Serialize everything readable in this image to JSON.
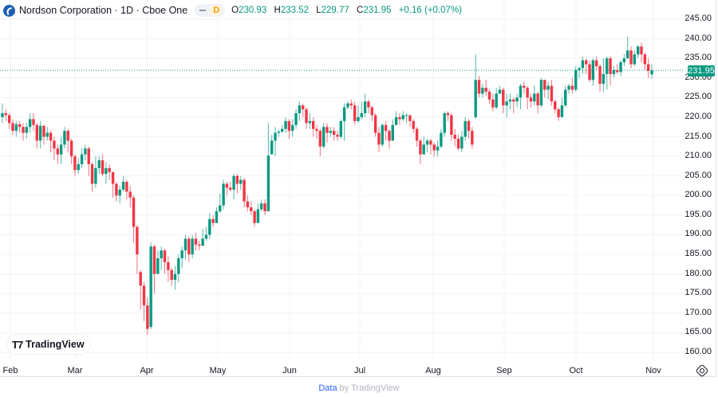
{
  "header": {
    "title": "Nordson Corporation · 1D · Cboe One",
    "badge": "D",
    "ohlc": [
      {
        "key": "O",
        "value": "230.93"
      },
      {
        "key": "H",
        "value": "233.52"
      },
      {
        "key": "L",
        "value": "229.77"
      },
      {
        "key": "C",
        "value": "231.95"
      },
      {
        "key": "",
        "value": "+0.16 (+0.07%)"
      }
    ]
  },
  "price_tag": "231.95",
  "branding": "TradingView",
  "footer": {
    "link": "Data",
    "text": " by TradingView"
  },
  "colors": {
    "up": "#089981",
    "down": "#f23645",
    "grid": "#f0f3fa",
    "price_line": "#089981"
  },
  "chart_data": {
    "type": "candlestick",
    "title": "Nordson Corporation · 1D · Cboe One",
    "y_ticks": [
      "245.00",
      "240.00",
      "235.00",
      "230.00",
      "225.00",
      "220.00",
      "215.00",
      "210.00",
      "205.00",
      "200.00",
      "195.00",
      "190.00",
      "185.00",
      "180.00",
      "175.00",
      "170.00",
      "165.00",
      "160.00"
    ],
    "x_ticks": [
      "Feb",
      "Mar",
      "Apr",
      "May",
      "Jun",
      "Jul",
      "Aug",
      "Sep",
      "Oct",
      "Nov"
    ],
    "ylim": [
      158,
      247
    ],
    "last_price": 231.95,
    "candles": [
      [
        220.0,
        221.0,
        223.5,
        218.5
      ],
      [
        221.0,
        220.5,
        222,
        219
      ],
      [
        220.5,
        218.5,
        221,
        217
      ],
      [
        218.5,
        216.5,
        219.5,
        215.5
      ],
      [
        216.5,
        218.2,
        219,
        215
      ],
      [
        218.2,
        217.5,
        219,
        216
      ],
      [
        217.5,
        216,
        218.5,
        214
      ],
      [
        216,
        217.5,
        218.5,
        214.5
      ],
      [
        217.5,
        219.5,
        221,
        216
      ],
      [
        219.5,
        218,
        221,
        216.5
      ],
      [
        218,
        214,
        218.5,
        212
      ],
      [
        214,
        217.8,
        219,
        212
      ],
      [
        217.8,
        215,
        218,
        213
      ],
      [
        215,
        216,
        217.5,
        214
      ],
      [
        216,
        214,
        216.5,
        211
      ],
      [
        214,
        212,
        215,
        209
      ],
      [
        212,
        210.5,
        213,
        208
      ],
      [
        210.5,
        213,
        215,
        208
      ],
      [
        213,
        216.5,
        217.5,
        212
      ],
      [
        216.5,
        214,
        217,
        211
      ],
      [
        214,
        210,
        214.5,
        208
      ],
      [
        210,
        206.5,
        210.5,
        205
      ],
      [
        206.5,
        208,
        209.5,
        205.5
      ],
      [
        208,
        210.5,
        212,
        207
      ],
      [
        210.5,
        212,
        213,
        209
      ],
      [
        212,
        208,
        212.5,
        205
      ],
      [
        208,
        203,
        208.5,
        201
      ],
      [
        203,
        207,
        210,
        202
      ],
      [
        207,
        209,
        210,
        205.5
      ],
      [
        209,
        205.5,
        210.5,
        205
      ],
      [
        205.5,
        207,
        208.5,
        203
      ],
      [
        207,
        206,
        208,
        204
      ],
      [
        206,
        203,
        206,
        199.5
      ],
      [
        203,
        200,
        203.5,
        198.5
      ],
      [
        200,
        201.5,
        202.5,
        198
      ],
      [
        201.5,
        203.5,
        205,
        201
      ],
      [
        203.5,
        201,
        204,
        199
      ],
      [
        201,
        199.5,
        202.5,
        197
      ],
      [
        199.5,
        192,
        200,
        188
      ],
      [
        192,
        185,
        192.5,
        180
      ],
      [
        180.5,
        177,
        181,
        171
      ],
      [
        177,
        172,
        178,
        168
      ],
      [
        172,
        166,
        174,
        164.5
      ],
      [
        166.5,
        187,
        188,
        166
      ],
      [
        187,
        180,
        187.5,
        175
      ],
      [
        180,
        184,
        186,
        180
      ],
      [
        184,
        186,
        187,
        181
      ],
      [
        186,
        183,
        186.5,
        180
      ],
      [
        183,
        181,
        184.5,
        178
      ],
      [
        181,
        178.5,
        181.5,
        177
      ],
      [
        178.5,
        180,
        182,
        176
      ],
      [
        180,
        184,
        185,
        178
      ],
      [
        184,
        186,
        187,
        181.5
      ],
      [
        186,
        189,
        190,
        183.5
      ],
      [
        189,
        185,
        189.5,
        183
      ],
      [
        185,
        189,
        190,
        184
      ],
      [
        189,
        187.5,
        190.5,
        186
      ],
      [
        187.5,
        187.2,
        188.5,
        186
      ],
      [
        187.2,
        189,
        191.5,
        188
      ],
      [
        189,
        190,
        192,
        188.5
      ],
      [
        190,
        194,
        195.5,
        189
      ],
      [
        194,
        193,
        195,
        192
      ],
      [
        193,
        196,
        197,
        194
      ],
      [
        196,
        197.5,
        200.5,
        195.5
      ],
      [
        197.5,
        203,
        204,
        196.5
      ],
      [
        203,
        202,
        203.5,
        200
      ],
      [
        202,
        201.5,
        203.5,
        201
      ],
      [
        201.5,
        205,
        205.5,
        199
      ],
      [
        205,
        203,
        205.5,
        200.5
      ],
      [
        203,
        204,
        205,
        201.5
      ],
      [
        204,
        198.5,
        204.5,
        197
      ],
      [
        198.5,
        197,
        200,
        196
      ],
      [
        197,
        196,
        198.5,
        195
      ],
      [
        196,
        193,
        196.5,
        192
      ],
      [
        193,
        196.5,
        198,
        193
      ],
      [
        196.5,
        198,
        199,
        196
      ],
      [
        198,
        196,
        199,
        195
      ],
      [
        196,
        210.2,
        218.5,
        206.5
      ],
      [
        210.5,
        214,
        215.5,
        211
      ],
      [
        214,
        216,
        217.5,
        210
      ],
      [
        216,
        216.3,
        216.8,
        215
      ],
      [
        216.3,
        217,
        218,
        216
      ],
      [
        217,
        219,
        220,
        216
      ],
      [
        219,
        216.5,
        219.5,
        214.5
      ],
      [
        216.5,
        218,
        219.5,
        215
      ],
      [
        218,
        221,
        222,
        217
      ],
      [
        221,
        223,
        224,
        219
      ],
      [
        223,
        222,
        223.5,
        220
      ],
      [
        222,
        218.5,
        222.5,
        217
      ],
      [
        218.5,
        219,
        221,
        217
      ],
      [
        219,
        217,
        220,
        215
      ],
      [
        217,
        216.5,
        218,
        214.5
      ],
      [
        216.5,
        212.5,
        217,
        210
      ],
      [
        212.5,
        217.5,
        218.5,
        212
      ],
      [
        217.5,
        216,
        218.5,
        213.5
      ],
      [
        216,
        216.5,
        217.5,
        215
      ],
      [
        216.5,
        215.5,
        217.5,
        214
      ],
      [
        215.5,
        215,
        216.5,
        214
      ],
      [
        215,
        219,
        219.5,
        214.5
      ],
      [
        219,
        222.5,
        223.5,
        214
      ],
      [
        222.5,
        223.5,
        224,
        222
      ],
      [
        223.5,
        223,
        224.5,
        222
      ],
      [
        223,
        219,
        224,
        218
      ],
      [
        219,
        220,
        223,
        218.5
      ],
      [
        220,
        221,
        224,
        219.5
      ],
      [
        221,
        224,
        226,
        220
      ],
      [
        224,
        222.5,
        224.5,
        221
      ],
      [
        222.5,
        220.5,
        223,
        219
      ],
      [
        220.5,
        216,
        221,
        215
      ],
      [
        216,
        213,
        217.5,
        211
      ],
      [
        213,
        218,
        218.5,
        212.5
      ],
      [
        218,
        216.5,
        219,
        214
      ],
      [
        216.5,
        214,
        217,
        212
      ],
      [
        214,
        218,
        219.5,
        214.5
      ],
      [
        218,
        220,
        221.5,
        218
      ],
      [
        220,
        219.5,
        221,
        218
      ],
      [
        219.5,
        220.5,
        221.5,
        219
      ],
      [
        220.5,
        220.5,
        221,
        218.5
      ],
      [
        220.5,
        219,
        220.5,
        217.5
      ],
      [
        219,
        217,
        219.5,
        216
      ],
      [
        217,
        214,
        217.5,
        212.5
      ],
      [
        214,
        210.5,
        214.5,
        208
      ],
      [
        210.5,
        213,
        215,
        210.5
      ],
      [
        213,
        214,
        214.5,
        211
      ],
      [
        214,
        213,
        214.5,
        210.5
      ],
      [
        213,
        211.5,
        213.5,
        210
      ],
      [
        211.5,
        212.5,
        214,
        210
      ],
      [
        212.5,
        216,
        217,
        212
      ],
      [
        216,
        221,
        221.5,
        215
      ],
      [
        221,
        220.5,
        221.5,
        219
      ],
      [
        220.5,
        215.5,
        221,
        214
      ],
      [
        215.5,
        214.5,
        217,
        212.5
      ],
      [
        214.5,
        212,
        215.5,
        211.5
      ],
      [
        212,
        215,
        216.5,
        211
      ],
      [
        215,
        219,
        220,
        214
      ],
      [
        219,
        216.5,
        219.5,
        214.5
      ],
      [
        216.5,
        213,
        217.5,
        212
      ],
      [
        220,
        229.5,
        236,
        219.5
      ],
      [
        229.5,
        226,
        230.5,
        225
      ],
      [
        226,
        227.5,
        228.5,
        225
      ],
      [
        227.5,
        226.5,
        229.5,
        225.5
      ],
      [
        226.5,
        224.5,
        227,
        223.5
      ],
      [
        224.5,
        222.5,
        226,
        221.5
      ],
      [
        222.5,
        226,
        227.5,
        222
      ],
      [
        226,
        227,
        228,
        226
      ],
      [
        227,
        223,
        227.5,
        221
      ],
      [
        223,
        224,
        226,
        220
      ],
      [
        224,
        224.5,
        226,
        222
      ],
      [
        224.5,
        224,
        225,
        221
      ],
      [
        224,
        225,
        226,
        222.5
      ],
      [
        225,
        228,
        228.5,
        222
      ],
      [
        228,
        227.5,
        229,
        226
      ],
      [
        227.5,
        225,
        228,
        222
      ],
      [
        225,
        224,
        226,
        222.5
      ],
      [
        224,
        226,
        228,
        223
      ],
      [
        226,
        223,
        226.5,
        221
      ],
      [
        223,
        229.5,
        230,
        222.5
      ],
      [
        229.5,
        227,
        229.5,
        225
      ],
      [
        227,
        228,
        229,
        224.5
      ],
      [
        228,
        224,
        229.5,
        223
      ],
      [
        224,
        222,
        224.5,
        221
      ],
      [
        222,
        220,
        222.5,
        219
      ],
      [
        220,
        223,
        225,
        220.5
      ],
      [
        223,
        227,
        228,
        222.5
      ],
      [
        227,
        228,
        228.5,
        226
      ],
      [
        228,
        227,
        230,
        226
      ],
      [
        227,
        232,
        233,
        226.5
      ],
      [
        232,
        232.5,
        233,
        230
      ],
      [
        232.5,
        234.5,
        235.5,
        231
      ],
      [
        234.5,
        233.5,
        235,
        231
      ],
      [
        233.5,
        229.5,
        234.5,
        229
      ],
      [
        229.5,
        234.5,
        235,
        228
      ],
      [
        234.5,
        233,
        235.5,
        232
      ],
      [
        233,
        228.5,
        233.5,
        226.5
      ],
      [
        228.5,
        231,
        235,
        226.5
      ],
      [
        231,
        235,
        235.5,
        227
      ],
      [
        235,
        231,
        235.5,
        228
      ],
      [
        231,
        232,
        233,
        230
      ],
      [
        232,
        231.5,
        233.5,
        231
      ],
      [
        231.5,
        234,
        234.5,
        230.5
      ],
      [
        234,
        235,
        236,
        233
      ],
      [
        235,
        237,
        240.5,
        235
      ],
      [
        237,
        233.5,
        238,
        232.5
      ],
      [
        233.5,
        236,
        237,
        233
      ],
      [
        236,
        238,
        238.5,
        235
      ],
      [
        238,
        236,
        239,
        234
      ],
      [
        236,
        233.5,
        236.5,
        232
      ],
      [
        233.5,
        231.8,
        235,
        230
      ],
      [
        230.93,
        231.95,
        233.52,
        229.77
      ]
    ]
  }
}
